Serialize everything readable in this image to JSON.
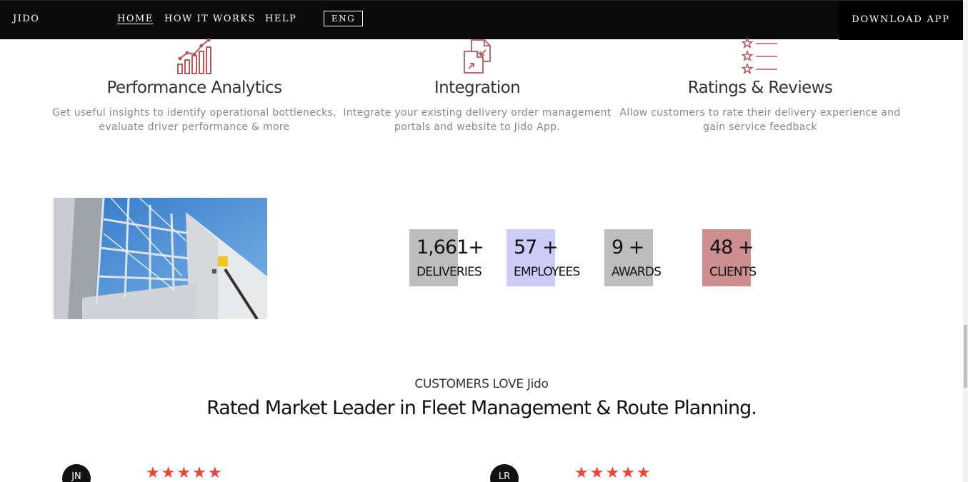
{
  "nav": {
    "brand": "JIDO",
    "links": [
      "HOME",
      "HOW IT WORKS",
      "HELP"
    ],
    "language": "ENG",
    "download": "DOWNLOAD APP"
  },
  "features": [
    {
      "icon": "analytics-chart-icon",
      "title": "Performance Analytics",
      "line1": "Get useful insights to identify operational bottlenecks,",
      "line2": "evaluate driver performance & more"
    },
    {
      "icon": "integration-document-icon",
      "title": "Integration",
      "line1": "Integrate your existing delivery order management",
      "line2": "portals and website to Jido App."
    },
    {
      "icon": "star-list-icon",
      "title": "Ratings & Reviews",
      "line1": "Allow customers to rate their delivery experience and",
      "line2": "gain service feedback"
    }
  ],
  "stats": [
    {
      "value": "1,661+",
      "label": "DELIVERIES",
      "color": "#bdbdbd"
    },
    {
      "value": "57 +",
      "label": "EMPLOYEES",
      "color": "#ccccf6"
    },
    {
      "value": "9 +",
      "label": "AWARDS",
      "color": "#bdbdbd"
    },
    {
      "value": "48 +",
      "label": "CLIENTS",
      "color": "#cc8e8e"
    }
  ],
  "testimonials": {
    "eyebrow": "CUSTOMERS LOVE Jido",
    "headline": "Rated Market Leader in Fleet Management & Route Planning.",
    "reviews": [
      {
        "initials": "JN",
        "stars": "★★★★★"
      },
      {
        "initials": "LR",
        "stars": "★★★★★"
      }
    ]
  },
  "colors": {
    "accent": "#b5595d",
    "nav_bg": "#0b0b0b",
    "star": "#ee4433"
  }
}
